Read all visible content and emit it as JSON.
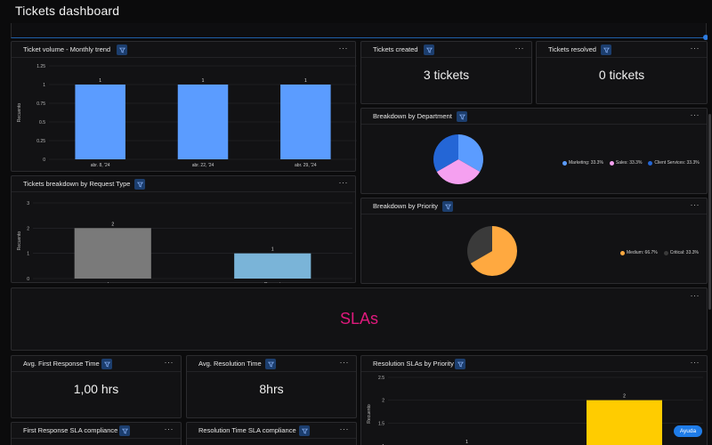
{
  "page": {
    "title": "Tickets dashboard"
  },
  "icons": {
    "filter": "filter-icon",
    "more": "more-horizontal-icon"
  },
  "colors": {
    "accent": "#2d7be0",
    "bar_blue": "#5b9cff",
    "bar_gray": "#7a7a7a",
    "bar_lightblue": "#7ab4d8",
    "bar_yellow": "#ffcc00",
    "pie_blue": "#5b9cff",
    "pie_pink": "#f5a0f0",
    "pie_darkblue": "#2466d6",
    "pie_orange": "#ffa940",
    "pie_dark": "#3a3a3a",
    "sla": "#e0197d"
  },
  "cards": {
    "monthly": {
      "title": "Ticket volume - Monthly trend"
    },
    "created": {
      "title": "Tickets created",
      "value": "3 tickets"
    },
    "resolved": {
      "title": "Tickets resolved",
      "value": "0 tickets"
    },
    "department": {
      "title": "Breakdown by Department"
    },
    "request_type": {
      "title": "Tickets breakdown by Request Type"
    },
    "priority": {
      "title": "Breakdown by Priority"
    },
    "slas": {
      "label": "SLAs"
    },
    "first_response": {
      "title": "Avg. First Response Time",
      "value": "1,00 hrs"
    },
    "resolution_time": {
      "title": "Avg. Resolution Time",
      "value": "8hrs"
    },
    "resolution_slas": {
      "title": "Resolution SLAs by Priority"
    },
    "fr_compliance": {
      "title": "First Response SLA compliance"
    },
    "rt_compliance": {
      "title": "Resolution Time SLA compliance"
    }
  },
  "help": {
    "label": "Ayuda"
  },
  "chart_data": [
    {
      "id": "monthly",
      "type": "bar",
      "title": "Ticket volume - Monthly trend",
      "categories": [
        "abr. 8, '24",
        "abr. 22, '24",
        "abr. 29, '24"
      ],
      "values": [
        1,
        1,
        1
      ],
      "data_labels": [
        "1",
        "1",
        "1"
      ],
      "yticks": [
        "0",
        "0.25",
        "0.5",
        "0.75",
        "1",
        "1.25"
      ],
      "ylim": [
        0,
        1.25
      ],
      "ylabel": "Recuento",
      "xlabel": ""
    },
    {
      "id": "request_type",
      "type": "bar",
      "title": "Tickets breakdown by Request Type",
      "categories": [
        "Issue",
        "Request"
      ],
      "values": [
        2,
        1
      ],
      "data_labels": [
        "2",
        "1"
      ],
      "yticks": [
        "0",
        "1",
        "2",
        "3"
      ],
      "ylim": [
        0,
        3
      ],
      "ylabel": "Recuento",
      "xlabel": ""
    },
    {
      "id": "department",
      "type": "pie",
      "title": "Breakdown by Department",
      "labels": [
        "Marketing",
        "Sales",
        "Client Services"
      ],
      "values": [
        33.3,
        33.3,
        33.3
      ],
      "legend": [
        "Marketing: 33.3%",
        "Sales: 33.3%",
        "Client Services: 33.3%"
      ]
    },
    {
      "id": "priority",
      "type": "pie",
      "title": "Breakdown by Priority",
      "labels": [
        "Medium",
        "Critical"
      ],
      "values": [
        66.7,
        33.3
      ],
      "legend": [
        "Medium: 66.7%",
        "Critical: 33.3%"
      ]
    },
    {
      "id": "resolution_slas",
      "type": "bar",
      "title": "Resolution SLAs by Priority",
      "categories": [
        "",
        ""
      ],
      "values": [
        1,
        2
      ],
      "data_labels": [
        "1",
        "2"
      ],
      "yticks": [
        "1",
        "1.5",
        "2",
        "2.5"
      ],
      "ylim": [
        0.9,
        2.5
      ],
      "ylabel": "Recuento",
      "xlabel": ""
    }
  ]
}
